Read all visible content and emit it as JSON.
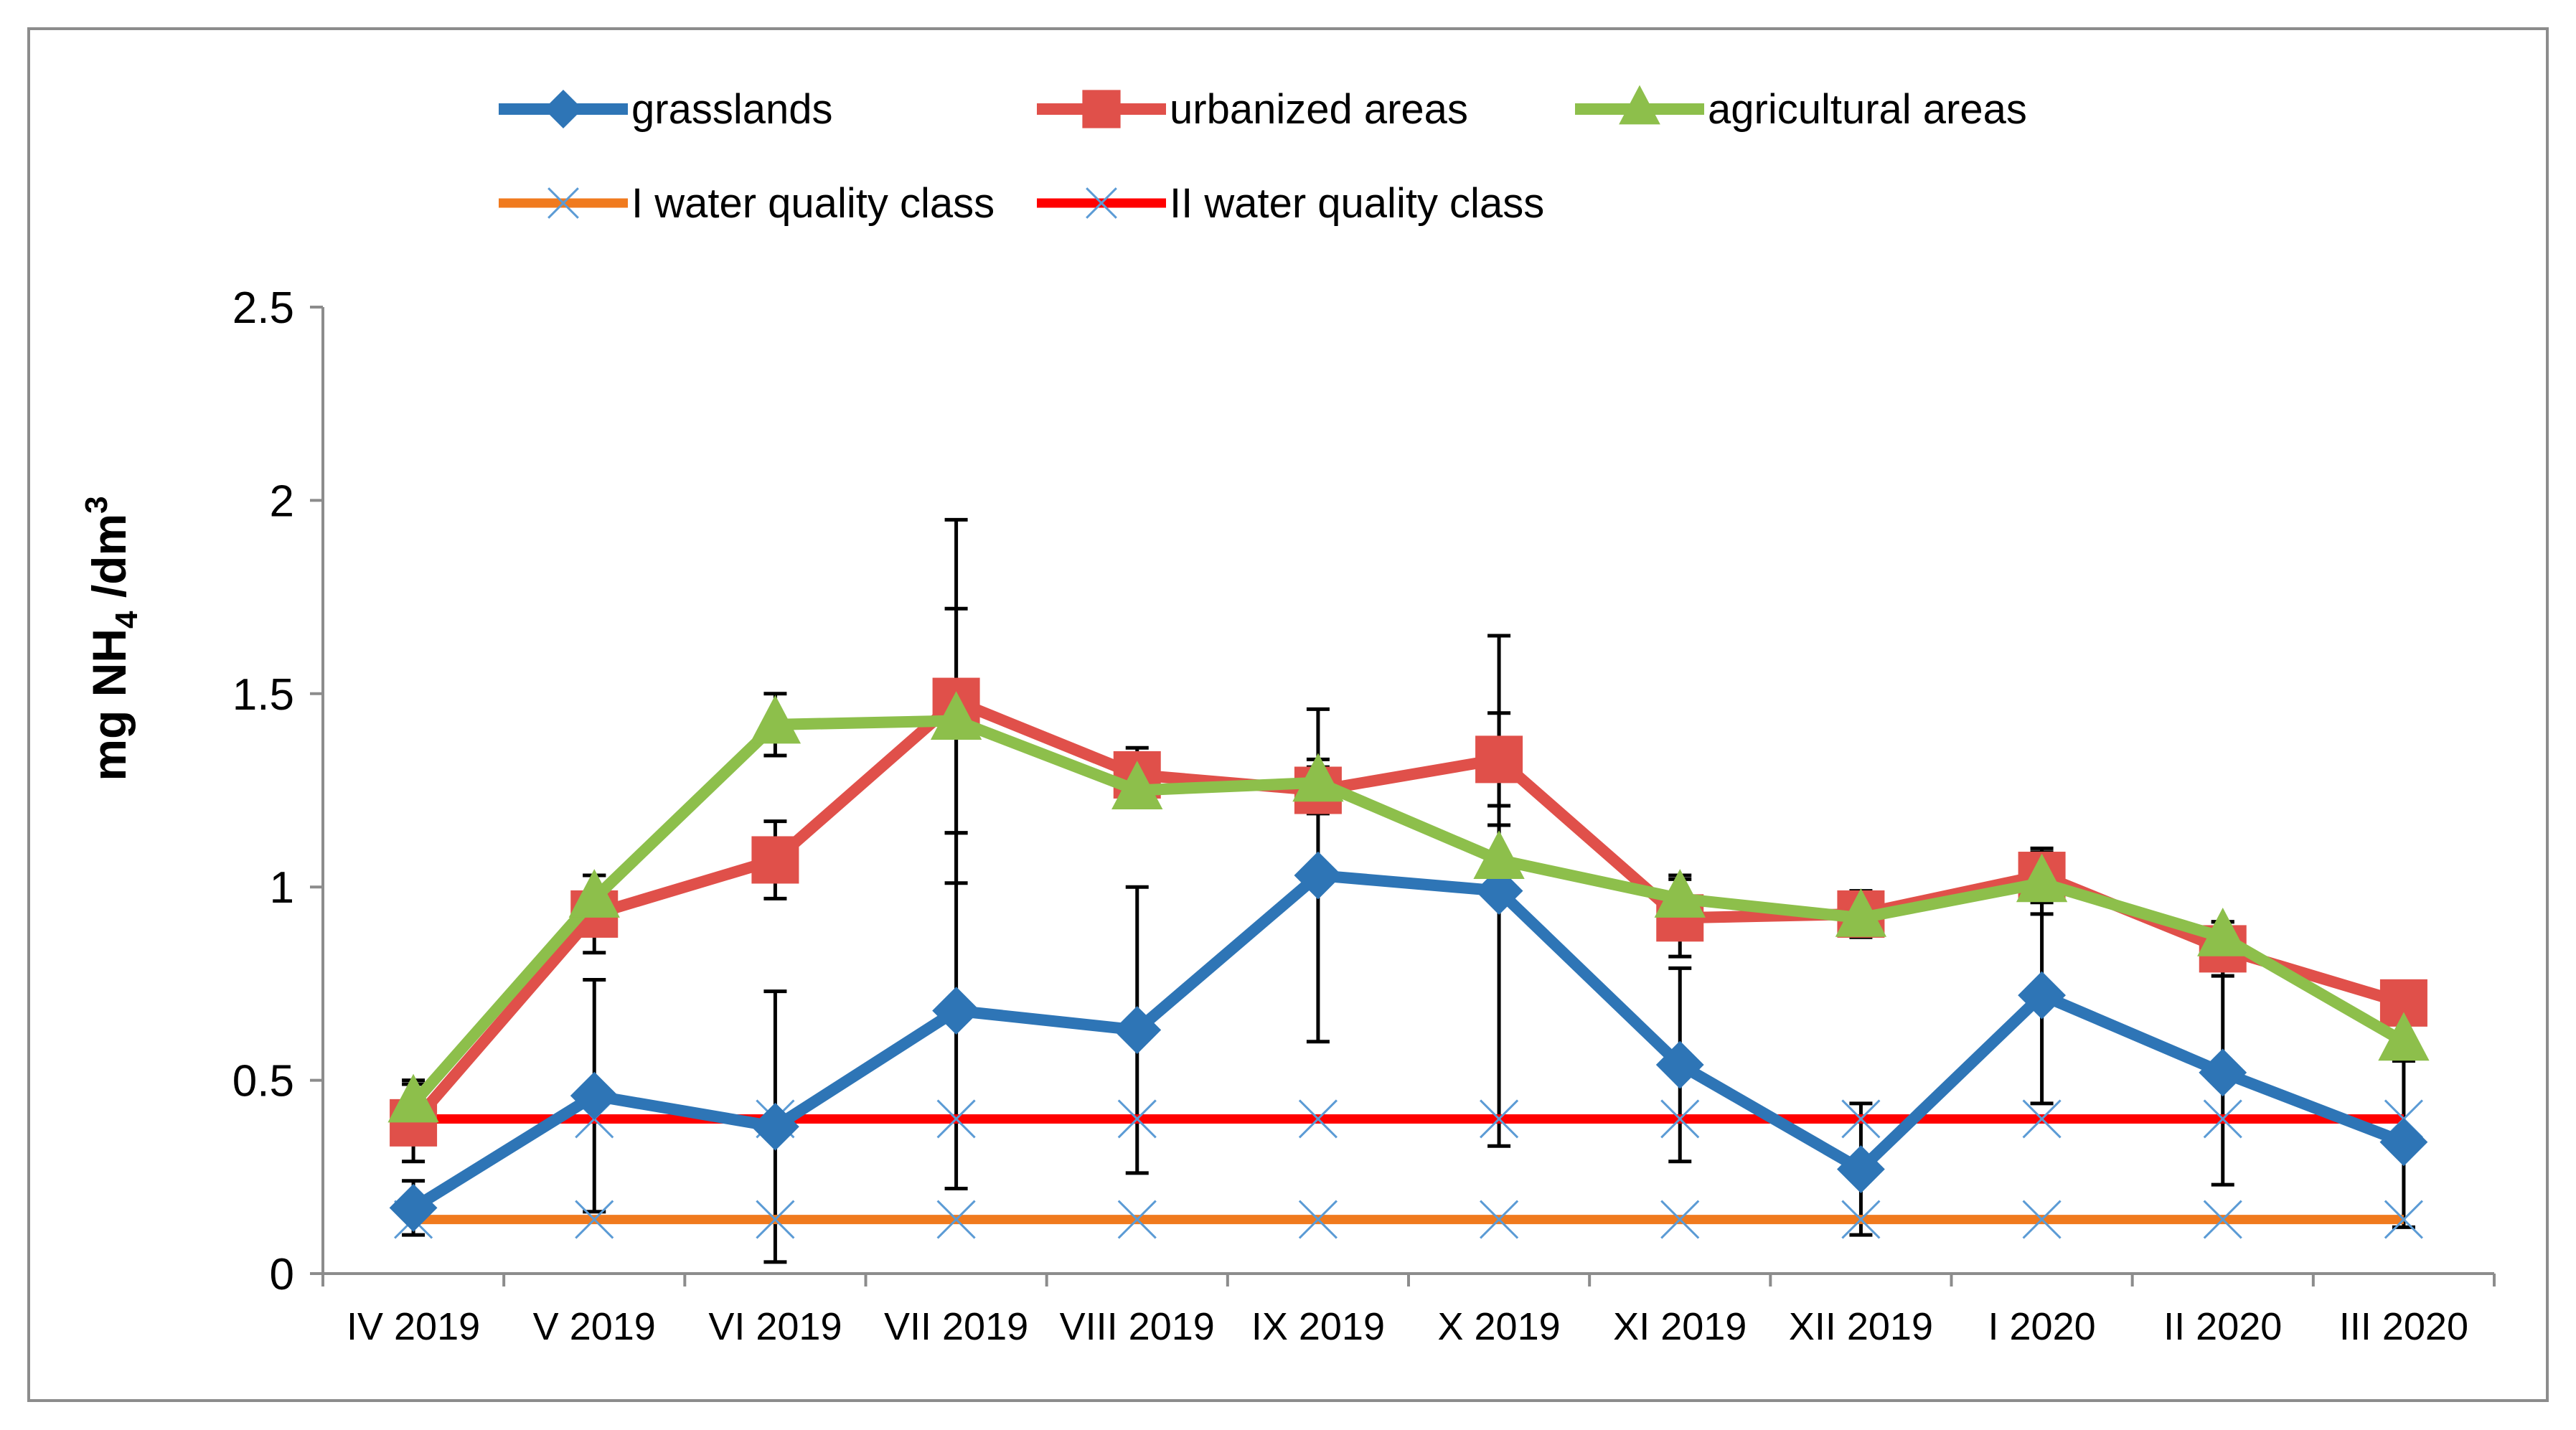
{
  "chart_data": {
    "type": "line",
    "title": "",
    "xlabel": "",
    "ylabel": {
      "base": "mg NH",
      "sub": "4",
      "mid": " /dm",
      "sup": "3"
    },
    "categories": [
      "IV 2019",
      "V 2019",
      "VI 2019",
      "VII 2019",
      "VIII 2019",
      "IX 2019",
      "X 2019",
      "XI 2019",
      "XII 2019",
      "I 2020",
      "II 2020",
      "III 2020"
    ],
    "ylim": [
      0,
      2.5
    ],
    "yticks": [
      0,
      0.5,
      1,
      1.5,
      2,
      2.5
    ],
    "ytick_labels": [
      "0",
      "0.5",
      "1",
      "1.5",
      "2",
      "2.5"
    ],
    "grid": false,
    "legend_position": "top",
    "series": [
      {
        "name": "grasslands",
        "color": "#2E75B6",
        "marker": "diamond",
        "values": [
          0.17,
          0.46,
          0.38,
          0.68,
          0.63,
          1.03,
          0.99,
          0.54,
          0.27,
          0.72,
          0.52,
          0.34
        ],
        "error": [
          0.07,
          0.3,
          0.35,
          0.46,
          0.37,
          0.43,
          0.66,
          0.25,
          0.17,
          0.28,
          0.29,
          0.22
        ]
      },
      {
        "name": "urbanized areas",
        "color": "#E0504A",
        "marker": "square",
        "values": [
          0.39,
          0.93,
          1.07,
          1.48,
          1.29,
          1.25,
          1.33,
          0.92,
          0.93,
          1.03,
          0.84,
          0.7
        ],
        "error": [
          0.1,
          0.1,
          0.1,
          0.47,
          0.07,
          0.06,
          0.12,
          0.1,
          0.06,
          0.07,
          0.07,
          0.04
        ]
      },
      {
        "name": "agricultural areas",
        "color": "#8DBF4B",
        "marker": "triangle",
        "values": [
          0.44,
          0.97,
          1.42,
          1.43,
          1.25,
          1.27,
          1.07,
          0.97,
          0.92,
          1.01,
          0.87,
          0.6
        ],
        "error": [
          0.06,
          0.06,
          0.08,
          0.29,
          0.04,
          0.06,
          0.09,
          0.06,
          0.04,
          0.08,
          0.04,
          0.05
        ]
      },
      {
        "name": "I water quality class",
        "color": "#F07A1E",
        "marker": "x",
        "values": [
          0.14,
          0.14,
          0.14,
          0.14,
          0.14,
          0.14,
          0.14,
          0.14,
          0.14,
          0.14,
          0.14,
          0.14
        ]
      },
      {
        "name": "II water quality class",
        "color": "#FF0000",
        "marker": "x",
        "values": [
          0.4,
          0.4,
          0.4,
          0.4,
          0.4,
          0.4,
          0.4,
          0.4,
          0.4,
          0.4,
          0.4,
          0.4
        ]
      }
    ]
  }
}
